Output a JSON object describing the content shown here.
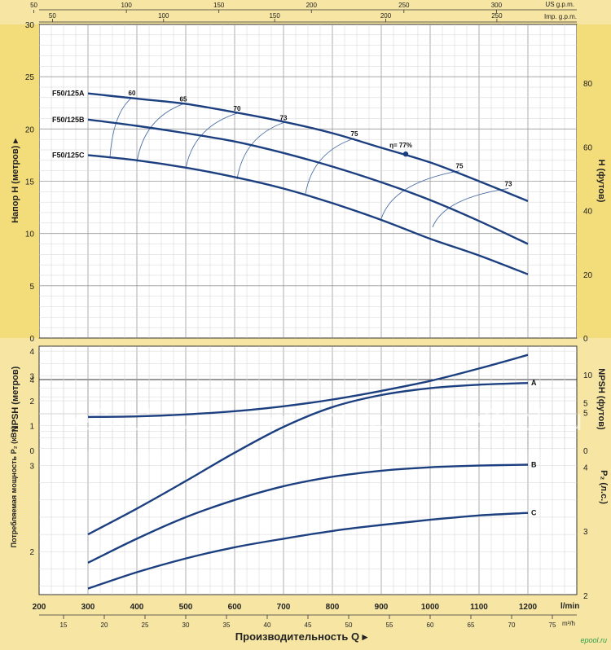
{
  "brand": "epool.ru",
  "watermark_text": "ePool.ru",
  "axes": {
    "head_left_title": "Напор H  (метров) ▸",
    "head_right_title": "H (футов)",
    "npsh_left_title": "NPSH  (метров)",
    "npsh_right_title": "NPSH  (футов)",
    "power_left_title": "Потребляемая мощность P₂ (кВт)",
    "power_right_title": "P₂  (л.с.)",
    "flow_title": "Производительность Q  ▸",
    "flow_unit_lmin": "l/min",
    "flow_unit_m3h": "m³/h",
    "us_gpm_unit": "US g.p.m.",
    "imp_gpm_unit": "Imp. g.p.m."
  },
  "colors": {
    "curve": "#1c3f80",
    "grid": "#b8b8b8",
    "panel": "#ffffff",
    "background": "#f7e6a3"
  },
  "chart_data": [
    {
      "type": "line",
      "title": "",
      "xlabel": "Производительность Q",
      "ylabel": "Напор H (метров)",
      "xlim": [
        200,
        1300
      ],
      "ylim": [
        0,
        30
      ],
      "x_ticks_lmin": [
        200,
        300,
        400,
        500,
        600,
        700,
        800,
        900,
        1000,
        1100,
        1200
      ],
      "x_ticks_m3h": [
        15,
        20,
        25,
        30,
        35,
        40,
        45,
        50,
        55,
        60,
        65,
        70,
        75
      ],
      "x_ticks_us_gpm": [
        50,
        100,
        150,
        200,
        250,
        300
      ],
      "x_ticks_imp_gpm": [
        50,
        100,
        150,
        200,
        250
      ],
      "y_ticks_m": [
        0,
        5,
        10,
        15,
        20,
        25,
        30
      ],
      "y_ticks_ft": [
        0,
        20,
        40,
        60,
        80
      ],
      "series": [
        {
          "name": "F50/125A",
          "x": [
            300,
            400,
            500,
            600,
            700,
            800,
            900,
            1000,
            1100,
            1200
          ],
          "values": [
            23.4,
            22.9,
            22.4,
            21.6,
            20.7,
            19.6,
            18.2,
            16.8,
            15.0,
            13.1
          ]
        },
        {
          "name": "F50/125B",
          "x": [
            300,
            400,
            500,
            600,
            700,
            800,
            900,
            1000,
            1100,
            1200
          ],
          "values": [
            20.9,
            20.3,
            19.6,
            18.8,
            17.7,
            16.4,
            14.9,
            13.2,
            11.2,
            9.0
          ]
        },
        {
          "name": "F50/125C",
          "x": [
            300,
            400,
            500,
            600,
            700,
            800,
            900,
            1000,
            1100,
            1200
          ],
          "values": [
            17.5,
            17.0,
            16.3,
            15.4,
            14.3,
            12.9,
            11.3,
            9.5,
            7.9,
            6.1
          ]
        }
      ],
      "efficiency_labels": [
        {
          "text": "60",
          "x": 390,
          "y": 23.0
        },
        {
          "text": "65",
          "x": 495,
          "y": 22.4
        },
        {
          "text": "70",
          "x": 605,
          "y": 21.5
        },
        {
          "text": "73",
          "x": 700,
          "y": 20.6
        },
        {
          "text": "75",
          "x": 845,
          "y": 19.1
        },
        {
          "text": "η= 77%",
          "x": 940,
          "y": 18.0
        },
        {
          "text": "75",
          "x": 1060,
          "y": 16.0
        },
        {
          "text": "73",
          "x": 1160,
          "y": 14.3
        }
      ],
      "best_efficiency_point": {
        "x": 950,
        "y": 17.6
      }
    },
    {
      "type": "line",
      "title": "",
      "xlabel": "",
      "ylabel": "NPSH (метров)",
      "xlim": [
        200,
        1300
      ],
      "ylim": [
        0,
        4.2
      ],
      "y_ticks_m": [
        0,
        1,
        2,
        3,
        4
      ],
      "y_ticks_ft": [
        0,
        5,
        10
      ],
      "series": [
        {
          "name": "NPSH",
          "x": [
            300,
            400,
            500,
            600,
            700,
            800,
            900,
            1000,
            1100,
            1200
          ],
          "values": [
            1.35,
            1.37,
            1.45,
            1.58,
            1.78,
            2.05,
            2.4,
            2.8,
            3.3,
            3.85
          ]
        }
      ]
    },
    {
      "type": "line",
      "title": "",
      "xlabel": "Производительность Q",
      "ylabel": "Потребляемая мощность P₂ (кВт)",
      "xlim": [
        200,
        1300
      ],
      "ylim": [
        1.5,
        4.0
      ],
      "y_ticks_kw": [
        2,
        3,
        4
      ],
      "y_ticks_hp": [
        2,
        3,
        4,
        5
      ],
      "series": [
        {
          "name": "A",
          "x": [
            300,
            400,
            500,
            600,
            700,
            800,
            900,
            1000,
            1100,
            1200
          ],
          "values": [
            2.2,
            2.5,
            2.82,
            3.15,
            3.45,
            3.68,
            3.82,
            3.9,
            3.94,
            3.96
          ]
        },
        {
          "name": "B",
          "x": [
            300,
            400,
            500,
            600,
            700,
            800,
            900,
            1000,
            1100,
            1200
          ],
          "values": [
            1.87,
            2.15,
            2.4,
            2.6,
            2.76,
            2.87,
            2.94,
            2.98,
            3.0,
            3.01
          ]
        },
        {
          "name": "C",
          "x": [
            300,
            400,
            500,
            600,
            700,
            800,
            900,
            1000,
            1100,
            1200
          ],
          "values": [
            1.57,
            1.76,
            1.92,
            2.05,
            2.15,
            2.24,
            2.31,
            2.37,
            2.42,
            2.45
          ]
        }
      ]
    }
  ]
}
